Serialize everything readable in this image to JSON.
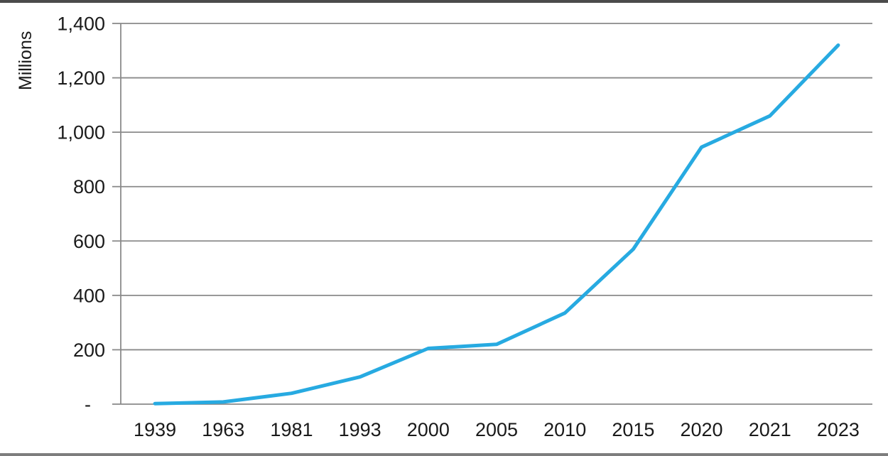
{
  "frame": {
    "background": "#ffffff",
    "border_top_color": "#4b4b4b",
    "border_bottom_color": "#7d7d7d"
  },
  "chart_data": {
    "type": "line",
    "title": "",
    "xlabel": "",
    "ylabel": "Millions",
    "legend": "none",
    "grid": "horizontal",
    "categories": [
      "1939",
      "1963",
      "1981",
      "1993",
      "2000",
      "2005",
      "2010",
      "2015",
      "2020",
      "2021",
      "2023"
    ],
    "series": [
      {
        "name": "series-1",
        "color": "#27AAE1",
        "values": [
          2,
          8,
          40,
          100,
          205,
          220,
          335,
          570,
          945,
          1060,
          1320
        ]
      }
    ],
    "ylim": [
      0,
      1400
    ],
    "y_ticks": [
      {
        "value": 0,
        "label": "-",
        "dx": -20
      },
      {
        "value": 200,
        "label": "200"
      },
      {
        "value": 400,
        "label": "400"
      },
      {
        "value": 600,
        "label": "600"
      },
      {
        "value": 800,
        "label": "800"
      },
      {
        "value": 1000,
        "label": "1,000"
      },
      {
        "value": 1200,
        "label": "1,200"
      },
      {
        "value": 1400,
        "label": "1,400"
      }
    ],
    "gridline_color": "#8a8a8a",
    "axis_color": "#8a8a8a",
    "text_color": "#1a1a1a"
  }
}
